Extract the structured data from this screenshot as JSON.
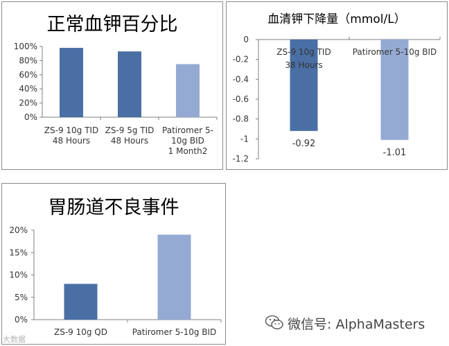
{
  "charts": [
    {
      "title": "正常血钾百分比",
      "chart_data": {
        "type": "bar",
        "categories": [
          "ZS-9 10g TID|48 Hours",
          "ZS-9 5g TID|48 Hours",
          "Patiromer 5-|10g BID|1 Month2"
        ],
        "values": [
          98,
          93,
          75
        ],
        "colors": [
          "#4a6fa5",
          "#4a6fa5",
          "#95aad3"
        ],
        "ylim": [
          0,
          100
        ],
        "yticks": [
          "0%",
          "20%",
          "40%",
          "60%",
          "80%",
          "100%"
        ],
        "xlabel": "",
        "ylabel": ""
      }
    },
    {
      "title": "血清钾下降量（mmol/L）",
      "chart_data": {
        "type": "bar",
        "categories": [
          "ZS-9 10g TID|38 Hours",
          "Patiromer 5-10g BID"
        ],
        "values": [
          -0.92,
          -1.01
        ],
        "data_labels": [
          "-0.92",
          "-1.01"
        ],
        "colors": [
          "#4a6fa5",
          "#95aad3"
        ],
        "ylim": [
          -1.2,
          0
        ],
        "yticks": [
          "0",
          "-0.2",
          "-0.4",
          "-0.6",
          "-0.8",
          "-1",
          "-1.2"
        ],
        "xlabel": "",
        "ylabel": ""
      }
    },
    {
      "title": "胃肠道不良事件",
      "chart_data": {
        "type": "bar",
        "categories": [
          "ZS-9 10g QD",
          "Patiromer 5-10g BID"
        ],
        "values": [
          8,
          19
        ],
        "colors": [
          "#4a6fa5",
          "#95aad3"
        ],
        "ylim": [
          0,
          20
        ],
        "yticks": [
          "0%",
          "5%",
          "10%",
          "15%",
          "20%"
        ],
        "xlabel": "",
        "ylabel": ""
      }
    }
  ],
  "watermark": {
    "text": "微信号: AlphaMasters",
    "icon": "wechat-icon",
    "corner_text": "大数据"
  }
}
